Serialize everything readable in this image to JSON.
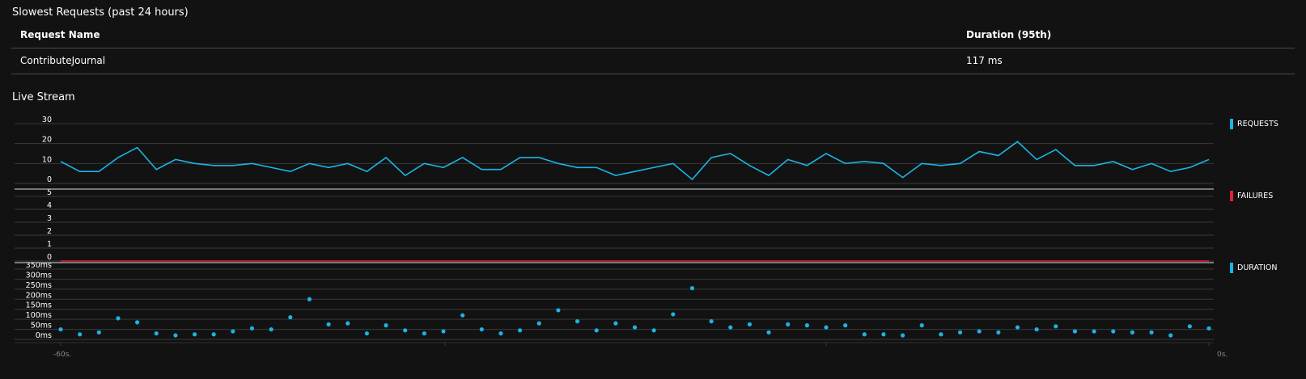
{
  "slowest_requests": {
    "title": "Slowest Requests (past 24 hours)",
    "columns": [
      "Request Name",
      "Duration (95th)"
    ],
    "rows": [
      {
        "name": "ContributeJournal",
        "duration": "117 ms"
      }
    ]
  },
  "live_stream": {
    "title": "Live Stream",
    "legend": {
      "requests": {
        "label": "REQUESTS",
        "color": "#1ab4e6"
      },
      "failures": {
        "label": "FAILURES",
        "color": "#e0203a"
      },
      "duration": {
        "label": "DURATION",
        "color": "#1ab4e6"
      }
    }
  },
  "chart_data": [
    {
      "type": "line",
      "series": [
        {
          "name": "REQUESTS",
          "values": [
            11,
            6,
            6,
            13,
            18,
            7,
            12,
            10,
            9,
            9,
            10,
            8,
            6,
            10,
            8,
            10,
            6,
            13,
            4,
            10,
            8,
            13,
            7,
            7,
            13,
            13,
            10,
            8,
            8,
            4,
            6,
            8,
            10,
            2,
            13,
            15,
            9,
            4,
            12,
            9,
            15,
            10,
            11,
            10,
            3,
            10,
            9,
            10,
            16,
            14,
            21,
            12,
            17,
            9,
            9,
            11,
            7,
            10,
            6,
            8,
            12
          ]
        }
      ],
      "x": {
        "min": -60,
        "max": 0,
        "tick_labels": [
          "-60s.",
          "0s."
        ]
      },
      "ylim": [
        0,
        30
      ],
      "y_ticks": [
        "0",
        "10",
        "20",
        "30"
      ],
      "grid": true
    },
    {
      "type": "line",
      "series": [
        {
          "name": "FAILURES",
          "values": [
            0,
            0,
            0,
            0,
            0,
            0,
            0,
            0,
            0,
            0,
            0,
            0,
            0,
            0,
            0,
            0,
            0,
            0,
            0,
            0,
            0,
            0,
            0,
            0,
            0,
            0,
            0,
            0,
            0,
            0,
            0,
            0,
            0,
            0,
            0,
            0,
            0,
            0,
            0,
            0,
            0,
            0,
            0,
            0,
            0,
            0,
            0,
            0,
            0,
            0,
            0,
            0,
            0,
            0,
            0,
            0,
            0,
            0,
            0,
            0,
            0
          ]
        }
      ],
      "ylim": [
        0,
        5
      ],
      "y_ticks": [
        "0",
        "1",
        "2",
        "3",
        "4",
        "5"
      ],
      "grid": true
    },
    {
      "type": "scatter",
      "series": [
        {
          "name": "DURATION",
          "values": [
            50,
            25,
            35,
            105,
            85,
            30,
            20,
            25,
            25,
            40,
            55,
            50,
            110,
            200,
            75,
            80,
            30,
            70,
            45,
            30,
            40,
            120,
            50,
            30,
            45,
            80,
            145,
            90,
            45,
            80,
            60,
            45,
            125,
            255,
            90,
            60,
            75,
            35,
            75,
            70,
            60,
            70,
            25,
            25,
            20,
            70,
            25,
            35,
            40,
            35,
            60,
            50,
            65,
            40,
            40,
            40,
            35,
            35,
            20,
            65,
            55
          ]
        }
      ],
      "ylim": [
        0,
        350
      ],
      "y_ticks": [
        "0ms",
        "50ms",
        "100ms",
        "150ms",
        "200ms",
        "250ms",
        "300ms",
        "350ms"
      ],
      "grid": true
    }
  ]
}
